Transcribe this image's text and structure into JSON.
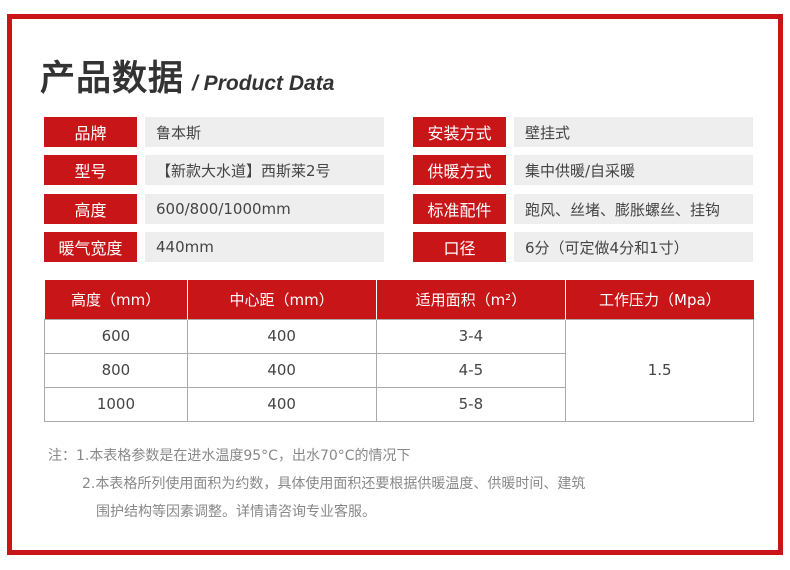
{
  "title": {
    "cn": "产品数据",
    "en": "/ Product Data"
  },
  "specs_left": [
    {
      "label": "品牌",
      "value": "鲁本斯"
    },
    {
      "label": "型号",
      "value": "【新款大水道】西斯莱2号"
    },
    {
      "label": "高度",
      "value": "600/800/1000mm"
    },
    {
      "label": "暖气宽度",
      "value": "440mm"
    }
  ],
  "specs_right": [
    {
      "label": "安装方式",
      "value": "壁挂式"
    },
    {
      "label": "供暖方式",
      "value": "集中供暖/自采暖"
    },
    {
      "label": "标准配件",
      "value": "跑风、丝堵、膨胀螺丝、挂钩"
    },
    {
      "label": "口径",
      "value": "6分（可定做4分和1寸）"
    }
  ],
  "table": {
    "headers": [
      "高度（mm）",
      "中心距（mm）",
      "适用面积（m²）",
      "工作压力（Mpa）"
    ],
    "rows": [
      [
        "600",
        "400",
        "3-4"
      ],
      [
        "800",
        "400",
        "4-5"
      ],
      [
        "1000",
        "400",
        "5-8"
      ]
    ],
    "pressure": "1.5"
  },
  "notes": {
    "n1": "注：1.本表格参数是在进水温度95°C，出水70°C的情况下",
    "n2": "2.本表格所列使用面积为约数，具体使用面积还要根据供暖温度、供暖时间、建筑",
    "n3": "围护结构等因素调整。详情请咨询专业客服。"
  },
  "colors": {
    "accent": "#c81518",
    "value_bg": "#eeeeee"
  }
}
